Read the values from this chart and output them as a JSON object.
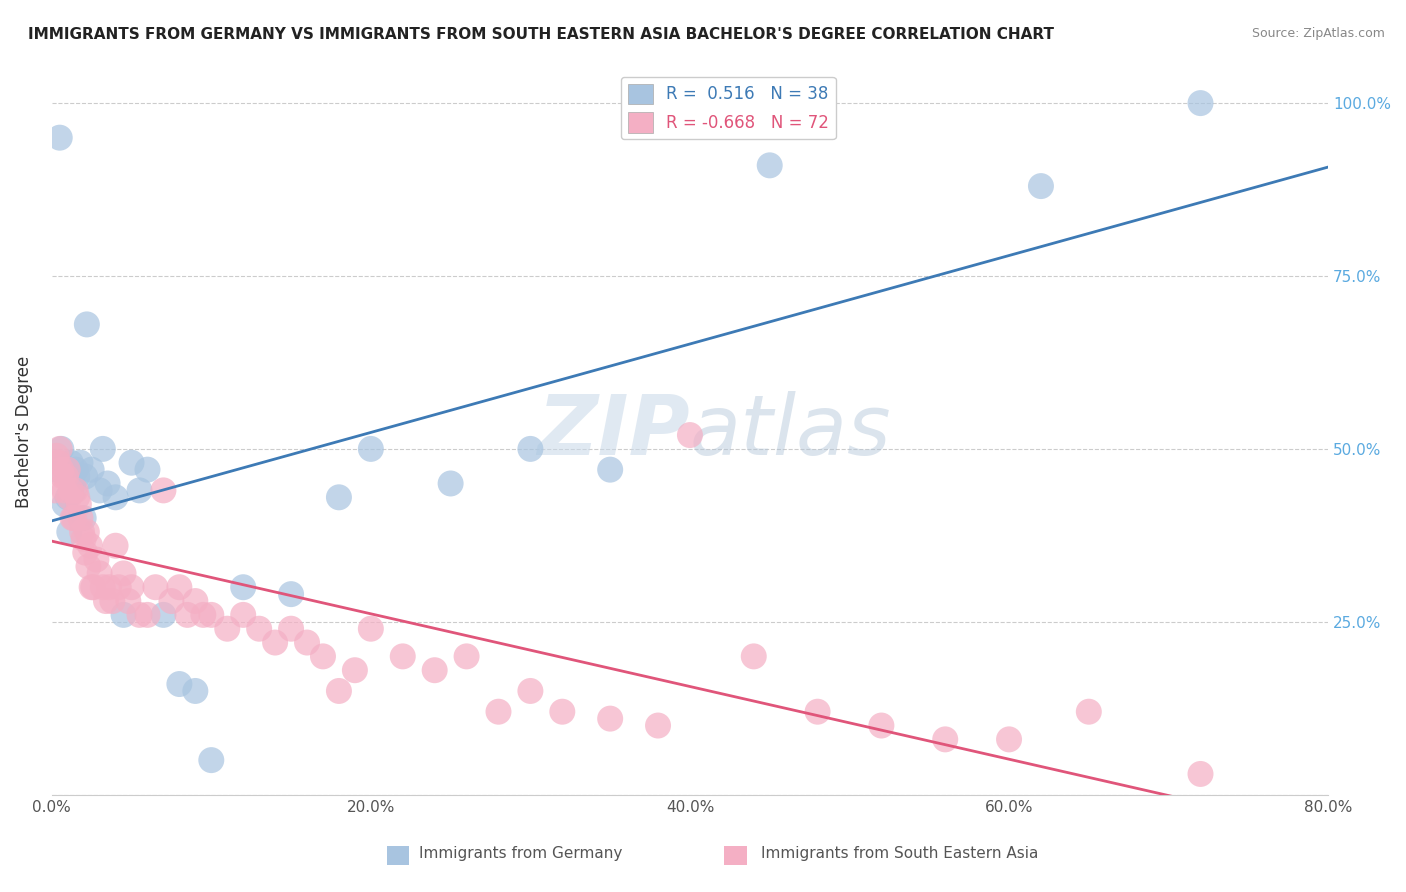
{
  "title": "IMMIGRANTS FROM GERMANY VS IMMIGRANTS FROM SOUTH EASTERN ASIA BACHELOR'S DEGREE CORRELATION CHART",
  "source": "Source: ZipAtlas.com",
  "ylabel": "Bachelor's Degree",
  "r_germany": 0.516,
  "n_germany": 38,
  "r_sea": -0.668,
  "n_sea": 72,
  "germany_color": "#a8c4e0",
  "germany_line_color": "#3d7ab5",
  "sea_color": "#f4afc4",
  "sea_line_color": "#e0557a",
  "background_color": "#ffffff",
  "watermark_zip": "ZIP",
  "watermark_atlas": "atlas",
  "germany_x": [
    0.3,
    0.5,
    0.6,
    0.8,
    1.0,
    1.1,
    1.2,
    1.3,
    1.4,
    1.5,
    1.6,
    1.8,
    2.0,
    2.1,
    2.2,
    2.5,
    3.0,
    3.2,
    3.5,
    4.0,
    4.5,
    5.0,
    5.5,
    6.0,
    7.0,
    8.0,
    9.0,
    10.0,
    12.0,
    15.0,
    18.0,
    20.0,
    25.0,
    30.0,
    35.0,
    45.0,
    62.0,
    72.0
  ],
  "germany_y": [
    47.0,
    95.0,
    50.0,
    42.0,
    43.0,
    38.0,
    48.0,
    45.0,
    44.0,
    47.0,
    46.0,
    48.0,
    40.0,
    46.0,
    68.0,
    47.0,
    44.0,
    50.0,
    45.0,
    43.0,
    26.0,
    48.0,
    44.0,
    47.0,
    26.0,
    16.0,
    15.0,
    5.0,
    30.0,
    29.0,
    43.0,
    50.0,
    45.0,
    50.0,
    47.0,
    91.0,
    88.0,
    100.0
  ],
  "sea_x": [
    0.2,
    0.3,
    0.4,
    0.5,
    0.6,
    0.7,
    0.8,
    0.9,
    1.0,
    1.1,
    1.2,
    1.3,
    1.4,
    1.5,
    1.6,
    1.7,
    1.8,
    1.9,
    2.0,
    2.1,
    2.2,
    2.3,
    2.4,
    2.5,
    2.6,
    2.8,
    3.0,
    3.2,
    3.4,
    3.6,
    3.8,
    4.0,
    4.2,
    4.5,
    4.8,
    5.0,
    5.5,
    6.0,
    6.5,
    7.0,
    7.5,
    8.0,
    8.5,
    9.0,
    9.5,
    10.0,
    11.0,
    12.0,
    13.0,
    14.0,
    15.0,
    16.0,
    17.0,
    18.0,
    19.0,
    20.0,
    22.0,
    24.0,
    26.0,
    28.0,
    30.0,
    32.0,
    35.0,
    38.0,
    40.0,
    44.0,
    48.0,
    52.0,
    56.0,
    60.0,
    65.0,
    72.0
  ],
  "sea_y": [
    44.0,
    49.0,
    48.0,
    50.0,
    47.0,
    46.0,
    44.0,
    46.0,
    47.0,
    43.0,
    44.0,
    40.0,
    40.0,
    44.0,
    43.0,
    42.0,
    40.0,
    38.0,
    37.0,
    35.0,
    38.0,
    33.0,
    36.0,
    30.0,
    30.0,
    34.0,
    32.0,
    30.0,
    28.0,
    30.0,
    28.0,
    36.0,
    30.0,
    32.0,
    28.0,
    30.0,
    26.0,
    26.0,
    30.0,
    44.0,
    28.0,
    30.0,
    26.0,
    28.0,
    26.0,
    26.0,
    24.0,
    26.0,
    24.0,
    22.0,
    24.0,
    22.0,
    20.0,
    15.0,
    18.0,
    24.0,
    20.0,
    18.0,
    20.0,
    12.0,
    15.0,
    12.0,
    11.0,
    10.0,
    52.0,
    20.0,
    12.0,
    10.0,
    8.0,
    8.0,
    12.0,
    3.0
  ]
}
